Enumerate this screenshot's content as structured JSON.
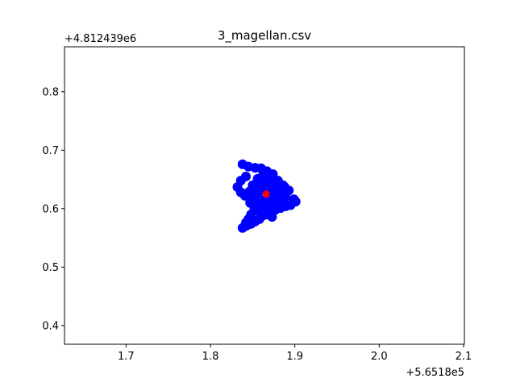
{
  "chart_data": {
    "type": "scatter",
    "title": "3_magellan.csv",
    "xlabel": "",
    "ylabel": "",
    "x_offset_label": "+5.6518e5",
    "y_offset_label": "+4.812439e6",
    "xlim": [
      1.627,
      2.101
    ],
    "ylim": [
      0.368,
      0.877
    ],
    "x_ticks": [
      1.7,
      1.8,
      1.9,
      2.0,
      2.1
    ],
    "x_tick_labels": [
      "1.7",
      "1.8",
      "1.9",
      "2.0",
      "2.1"
    ],
    "y_ticks": [
      0.4,
      0.5,
      0.6,
      0.7,
      0.8
    ],
    "y_tick_labels": [
      "0.4",
      "0.5",
      "0.6",
      "0.7",
      "0.8"
    ],
    "grid": false,
    "series": [
      {
        "color": "#0000ff",
        "marker": "circle",
        "x": [
          1.838,
          1.845,
          1.853,
          1.86,
          1.867,
          1.874,
          1.842,
          1.836,
          1.832,
          1.836,
          1.841,
          1.846,
          1.85,
          1.856,
          1.862,
          1.869,
          1.876,
          1.882,
          1.888,
          1.893,
          1.899,
          1.901,
          1.895,
          1.889,
          1.883,
          1.877,
          1.871,
          1.864,
          1.858,
          1.852,
          1.848,
          1.845,
          1.842,
          1.84,
          1.838,
          1.843,
          1.848,
          1.853,
          1.858,
          1.862,
          1.868,
          1.873,
          1.879,
          1.884,
          1.889,
          1.891,
          1.886,
          1.88,
          1.874,
          1.868,
          1.862,
          1.856,
          1.851,
          1.847,
          1.852,
          1.857,
          1.863,
          1.869,
          1.874,
          1.878,
          1.875,
          1.87,
          1.865,
          1.86,
          1.855,
          1.85,
          1.846,
          1.849,
          1.854,
          1.859,
          1.864,
          1.87,
          1.876,
          1.881,
          1.885
        ],
        "y": [
          0.676,
          0.672,
          0.67,
          0.669,
          0.664,
          0.659,
          0.655,
          0.648,
          0.637,
          0.628,
          0.622,
          0.629,
          0.64,
          0.651,
          0.656,
          0.65,
          0.645,
          0.64,
          0.637,
          0.631,
          0.616,
          0.612,
          0.606,
          0.604,
          0.601,
          0.598,
          0.597,
          0.6,
          0.603,
          0.597,
          0.59,
          0.582,
          0.576,
          0.569,
          0.567,
          0.571,
          0.574,
          0.578,
          0.582,
          0.588,
          0.59,
          0.586,
          0.605,
          0.612,
          0.62,
          0.63,
          0.64,
          0.648,
          0.644,
          0.638,
          0.632,
          0.626,
          0.618,
          0.61,
          0.602,
          0.596,
          0.598,
          0.606,
          0.614,
          0.622,
          0.63,
          0.636,
          0.643,
          0.647,
          0.642,
          0.636,
          0.628,
          0.62,
          0.612,
          0.608,
          0.615,
          0.623,
          0.628,
          0.625,
          0.618
        ]
      },
      {
        "color": "#ff0000",
        "marker": "circle",
        "x": [
          1.866
        ],
        "y": [
          0.625
        ]
      }
    ]
  }
}
